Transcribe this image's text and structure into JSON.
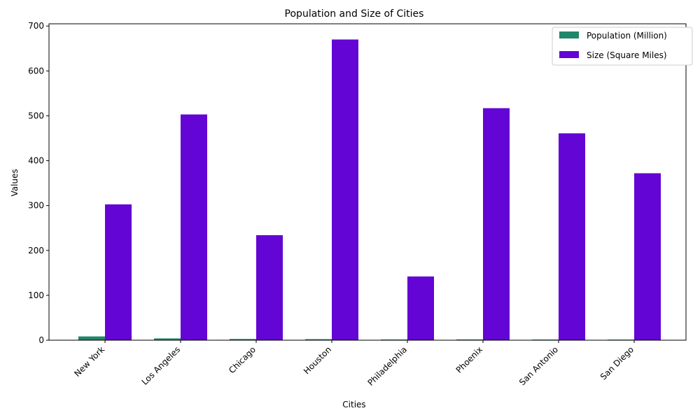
{
  "chart_data": {
    "type": "bar",
    "title": "Population and Size of Cities",
    "xlabel": "Cities",
    "ylabel": "Values",
    "categories": [
      "New York",
      "Los Angeles",
      "Chicago",
      "Houston",
      "Philadelphia",
      "Phoenix",
      "San Antonio",
      "San Diego"
    ],
    "series": [
      {
        "name": "Population (Million)",
        "color": "#21866a",
        "values": [
          8.4,
          4.0,
          2.7,
          2.3,
          1.6,
          1.7,
          1.5,
          1.4
        ]
      },
      {
        "name": "Size (Square Miles)",
        "color": "#6305d4",
        "values": [
          302.6,
          503.0,
          234.0,
          670.0,
          142.0,
          517.0,
          461.0,
          372.0
        ]
      }
    ],
    "ylim": [
      0,
      705
    ],
    "yticks": [
      0,
      100,
      200,
      300,
      400,
      500,
      600,
      700
    ],
    "legend_position": "top-right",
    "grid": false
  }
}
